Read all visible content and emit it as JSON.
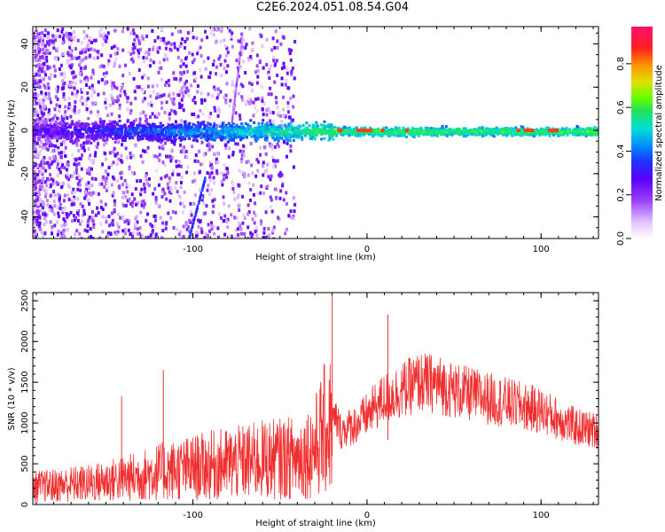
{
  "title": "C2E6.2024.051.08.54.G04",
  "colors": {
    "snr_line": "#f03030",
    "axis": "#000000",
    "colormap": [
      "#ffffff",
      "#e8c8ff",
      "#b070f0",
      "#7a00ff",
      "#2020ff",
      "#0090ff",
      "#00e0e0",
      "#20e060",
      "#60ff00",
      "#e0e000",
      "#ff9000",
      "#ff2020",
      "#ff1070"
    ]
  },
  "chart_data": [
    {
      "type": "heatmap",
      "title": "C2E6.2024.051.08.54.G04",
      "xlabel": "Height of straight line (km)",
      "ylabel": "Frequency (Hz)",
      "xlim": [
        -192,
        133
      ],
      "ylim": [
        -50,
        48
      ],
      "x_ticks": [
        -100,
        0,
        100
      ],
      "y_ticks": [
        -40,
        -20,
        0,
        20,
        40
      ],
      "colorbar": {
        "label": "Normalized spectral amplitude",
        "range": [
          0.0,
          0.97
        ],
        "ticks": [
          0.0,
          0.2,
          0.4,
          0.6,
          0.8
        ]
      },
      "grid": false
    },
    {
      "type": "line",
      "xlabel": "Height of straight line (km)",
      "ylabel": "SNR (10 * v/v)",
      "xlim": [
        -192,
        133
      ],
      "ylim": [
        0,
        2600
      ],
      "x_ticks": [
        -100,
        0,
        100
      ],
      "y_ticks": [
        0,
        500,
        1000,
        1500,
        2000,
        2500
      ],
      "grid": false,
      "series": [
        {
          "x": [
            -192,
            -180,
            -170,
            -160,
            -150,
            -140,
            -130,
            -120,
            -110,
            -100,
            -90,
            -80,
            -70,
            -60,
            -50,
            -40,
            -35,
            -30,
            -25,
            -20,
            -18,
            -15,
            -10,
            -5,
            0,
            5,
            10,
            15,
            20,
            25,
            30,
            40,
            50,
            60,
            70,
            80,
            90,
            100,
            110,
            120,
            133
          ],
          "values": [
            220,
            230,
            250,
            260,
            290,
            320,
            350,
            400,
            420,
            450,
            480,
            500,
            520,
            550,
            560,
            580,
            620,
            700,
            900,
            1000,
            1050,
            900,
            950,
            1000,
            1100,
            1200,
            1300,
            1350,
            1400,
            1450,
            1500,
            1480,
            1400,
            1350,
            1300,
            1250,
            1200,
            1150,
            1050,
            950,
            900
          ]
        }
      ],
      "annotations_peaks": [
        {
          "x": -117,
          "value": 1650
        },
        {
          "x": -141,
          "value": 1330
        },
        {
          "x": -20,
          "value": 2580
        },
        {
          "x": 12,
          "value": 2330
        }
      ]
    }
  ]
}
